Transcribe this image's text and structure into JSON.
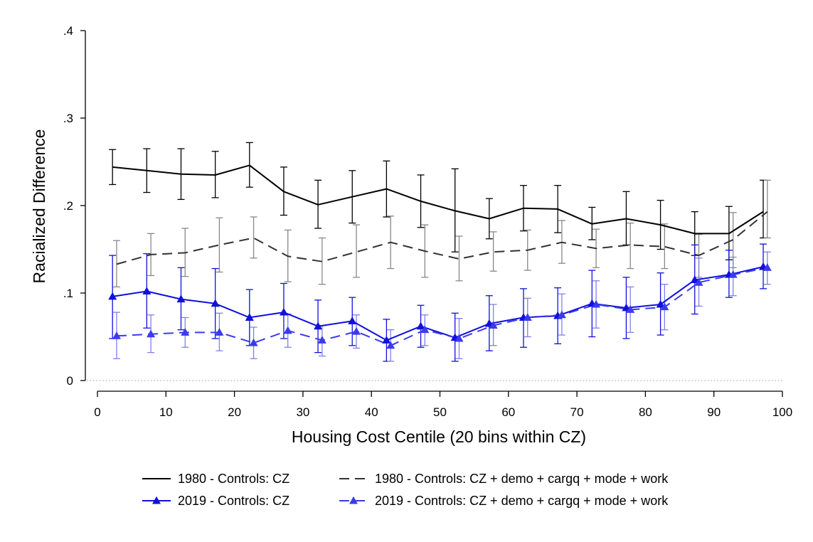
{
  "chart_data": {
    "type": "line",
    "title": "",
    "xlabel": "Housing Cost Centile (20 bins within CZ)",
    "ylabel": "Racialized Difference",
    "xlim": [
      0,
      100
    ],
    "ylim": [
      0,
      0.4
    ],
    "xticks": [
      0,
      10,
      20,
      30,
      40,
      50,
      60,
      70,
      80,
      90,
      100
    ],
    "xtick_labels": [
      "0",
      "10",
      "20",
      "30",
      "40",
      "50",
      "60",
      "70",
      "80",
      "90",
      "100"
    ],
    "yticks": [
      0,
      0.1,
      0.2,
      0.3,
      0.4
    ],
    "ytick_labels": [
      "0",
      ".1",
      ".2",
      ".3",
      ".4"
    ],
    "zero_reference_line": true,
    "legend_position": "bottom",
    "series": [
      {
        "name": "1980 - Controls: CZ",
        "color": "#000000",
        "dash": "solid",
        "marker": "none",
        "x": [
          2.2,
          7.2,
          12.2,
          17.2,
          22.2,
          27.2,
          32.2,
          37.2,
          42.2,
          47.2,
          52.2,
          57.2,
          62.2,
          67.2,
          72.2,
          77.2,
          82.2,
          87.2,
          92.2,
          97.2
        ],
        "y": [
          0.244,
          0.24,
          0.236,
          0.235,
          0.246,
          0.216,
          0.201,
          0.21,
          0.219,
          0.205,
          0.194,
          0.185,
          0.197,
          0.196,
          0.179,
          0.185,
          0.178,
          0.168,
          0.168,
          0.193
        ],
        "lower": [
          0.224,
          0.215,
          0.207,
          0.209,
          0.221,
          0.189,
          0.174,
          0.18,
          0.187,
          0.175,
          0.147,
          0.162,
          0.171,
          0.169,
          0.161,
          0.155,
          0.15,
          0.143,
          0.138,
          0.163
        ],
        "upper": [
          0.264,
          0.265,
          0.265,
          0.262,
          0.272,
          0.244,
          0.229,
          0.24,
          0.251,
          0.235,
          0.242,
          0.208,
          0.223,
          0.223,
          0.198,
          0.216,
          0.206,
          0.193,
          0.199,
          0.229
        ]
      },
      {
        "name": "1980 - Controls: CZ + demo + cargq + mode + work",
        "color": "#333333",
        "error_color": "#888888",
        "dash": "dashed",
        "marker": "none",
        "x": [
          2.8,
          7.8,
          12.8,
          17.8,
          22.8,
          27.8,
          32.8,
          37.8,
          42.8,
          47.8,
          52.8,
          57.8,
          62.8,
          67.8,
          72.8,
          77.8,
          82.8,
          87.8,
          92.8,
          97.8
        ],
        "y": [
          0.133,
          0.144,
          0.146,
          0.155,
          0.163,
          0.142,
          0.136,
          0.147,
          0.158,
          0.148,
          0.139,
          0.147,
          0.149,
          0.158,
          0.151,
          0.155,
          0.153,
          0.143,
          0.161,
          0.193
        ],
        "lower": [
          0.107,
          0.12,
          0.119,
          0.124,
          0.14,
          0.113,
          0.11,
          0.118,
          0.128,
          0.118,
          0.114,
          0.125,
          0.126,
          0.134,
          0.129,
          0.128,
          0.128,
          0.118,
          0.129,
          0.163
        ],
        "upper": [
          0.16,
          0.168,
          0.174,
          0.186,
          0.187,
          0.172,
          0.163,
          0.178,
          0.188,
          0.178,
          0.165,
          0.17,
          0.172,
          0.183,
          0.173,
          0.18,
          0.179,
          0.167,
          0.192,
          0.229
        ]
      },
      {
        "name": "2019 - Controls: CZ",
        "color": "#1010dd",
        "dash": "solid",
        "marker": "triangle",
        "x": [
          2.2,
          7.2,
          12.2,
          17.2,
          22.2,
          27.2,
          32.2,
          37.2,
          42.2,
          47.2,
          52.2,
          57.2,
          62.2,
          67.2,
          72.2,
          77.2,
          82.2,
          87.2,
          92.2,
          97.2
        ],
        "y": [
          0.096,
          0.102,
          0.093,
          0.088,
          0.072,
          0.078,
          0.062,
          0.068,
          0.046,
          0.062,
          0.049,
          0.065,
          0.072,
          0.074,
          0.088,
          0.083,
          0.087,
          0.115,
          0.121,
          0.13
        ],
        "lower": [
          0.048,
          0.06,
          0.058,
          0.048,
          0.04,
          0.048,
          0.032,
          0.04,
          0.022,
          0.038,
          0.022,
          0.034,
          0.038,
          0.042,
          0.05,
          0.048,
          0.052,
          0.076,
          0.095,
          0.105
        ],
        "upper": [
          0.143,
          0.145,
          0.129,
          0.128,
          0.104,
          0.111,
          0.092,
          0.095,
          0.07,
          0.086,
          0.077,
          0.097,
          0.105,
          0.106,
          0.126,
          0.118,
          0.123,
          0.155,
          0.149,
          0.156
        ]
      },
      {
        "name": "2019 - Controls: CZ + demo + cargq + mode + work",
        "color": "#3a3aee",
        "error_color": "#8080ee",
        "dash": "dashed",
        "marker": "triangle",
        "x": [
          2.8,
          7.8,
          12.8,
          17.8,
          22.8,
          27.8,
          32.8,
          37.8,
          42.8,
          47.8,
          52.8,
          57.8,
          62.8,
          67.8,
          72.8,
          77.8,
          82.8,
          87.8,
          92.8,
          97.8
        ],
        "y": [
          0.051,
          0.053,
          0.055,
          0.055,
          0.043,
          0.057,
          0.046,
          0.056,
          0.04,
          0.058,
          0.048,
          0.063,
          0.072,
          0.075,
          0.087,
          0.081,
          0.084,
          0.112,
          0.121,
          0.129
        ],
        "lower": [
          0.025,
          0.032,
          0.038,
          0.034,
          0.025,
          0.038,
          0.028,
          0.037,
          0.022,
          0.04,
          0.025,
          0.04,
          0.05,
          0.052,
          0.06,
          0.055,
          0.058,
          0.085,
          0.097,
          0.11
        ],
        "upper": [
          0.078,
          0.075,
          0.072,
          0.077,
          0.061,
          0.076,
          0.063,
          0.075,
          0.058,
          0.075,
          0.071,
          0.087,
          0.094,
          0.099,
          0.114,
          0.107,
          0.11,
          0.14,
          0.141,
          0.147
        ]
      }
    ]
  }
}
